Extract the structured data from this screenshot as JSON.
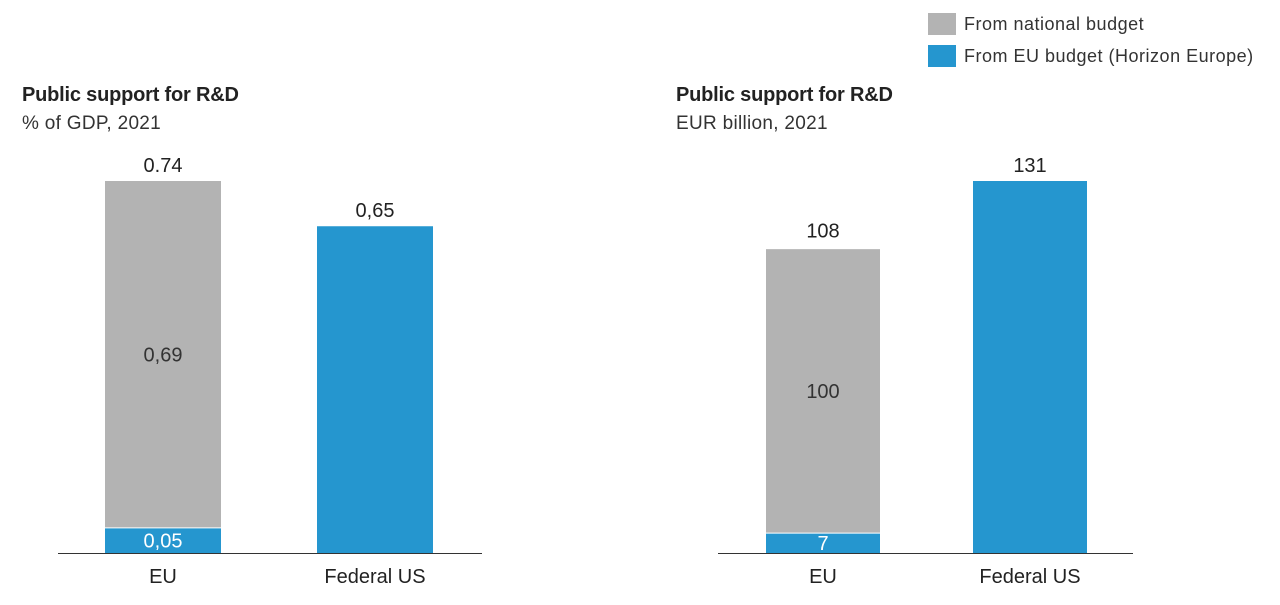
{
  "legend": {
    "items": [
      {
        "label": "From national budget",
        "color": "#b3b3b3"
      },
      {
        "label": "From EU budget (Horizon Europe)",
        "color": "#2596cf"
      }
    ]
  },
  "charts": [
    {
      "title": "Public support for R&D",
      "subtitle": "% of GDP, 2021"
    },
    {
      "title": "Public support for R&D",
      "subtitle": "EUR billion, 2021"
    }
  ],
  "chart_data": [
    {
      "type": "bar",
      "stacked": true,
      "title": "Public support for R&D",
      "subtitle": "% of GDP, 2021",
      "categories": [
        "EU",
        "Federal US"
      ],
      "series": [
        {
          "name": "From EU budget (Horizon Europe)",
          "color": "#2596cf",
          "values": [
            0.05,
            0.65
          ],
          "labels": [
            "0,05",
            ""
          ]
        },
        {
          "name": "From national budget",
          "color": "#b3b3b3",
          "values": [
            0.69,
            0
          ],
          "labels": [
            "0,69",
            ""
          ]
        }
      ],
      "totals": [
        0.74,
        0.65
      ],
      "total_labels": [
        "0.74",
        "0,65"
      ],
      "ylim": [
        0,
        0.74
      ]
    },
    {
      "type": "bar",
      "stacked": true,
      "title": "Public support for R&D",
      "subtitle": "EUR billion, 2021",
      "categories": [
        "EU",
        "Federal US"
      ],
      "series": [
        {
          "name": "From EU budget (Horizon Europe)",
          "color": "#2596cf",
          "values": [
            7,
            131
          ],
          "labels": [
            "7",
            ""
          ]
        },
        {
          "name": "From national budget",
          "color": "#b3b3b3",
          "values": [
            100,
            0
          ],
          "labels": [
            "100",
            ""
          ]
        }
      ],
      "totals": [
        108,
        131
      ],
      "total_labels": [
        "108",
        "131"
      ],
      "ylim": [
        0,
        131
      ]
    }
  ]
}
